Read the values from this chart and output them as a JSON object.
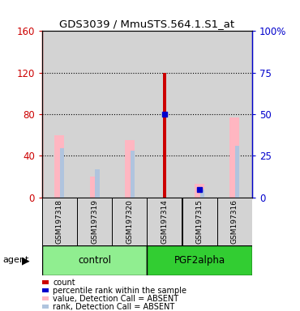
{
  "title": "GDS3039 / MmuSTS.564.1.S1_at",
  "samples": [
    "GSM197318",
    "GSM197319",
    "GSM197320",
    "GSM197314",
    "GSM197315",
    "GSM197316"
  ],
  "ylim_left": [
    0,
    160
  ],
  "ylim_right": [
    0,
    100
  ],
  "yticks_left": [
    0,
    40,
    80,
    120,
    160
  ],
  "ytick_labels_left": [
    "0",
    "40",
    "80",
    "120",
    "160"
  ],
  "yticks_right": [
    0,
    25,
    50,
    75,
    100
  ],
  "ytick_labels_right": [
    "0",
    "25",
    "50",
    "75",
    "100%"
  ],
  "values_absent": [
    60,
    20,
    55,
    0,
    13,
    77
  ],
  "ranks_absent": [
    47,
    27,
    45,
    0,
    8,
    50
  ],
  "counts": [
    0,
    0,
    0,
    120,
    0,
    0
  ],
  "pct_ranks": [
    0,
    0,
    0,
    80,
    8,
    0
  ],
  "color_count": "#CC0000",
  "color_pct_rank": "#0000CC",
  "color_value_absent": "#FFB6C1",
  "color_rank_absent": "#B0C4DE",
  "left_axis_color": "#CC0000",
  "right_axis_color": "#0000CC",
  "bg_sample_area": "#D3D3D3",
  "legend_items": [
    {
      "label": "count",
      "color": "#CC0000"
    },
    {
      "label": "percentile rank within the sample",
      "color": "#0000CC"
    },
    {
      "label": "value, Detection Call = ABSENT",
      "color": "#FFB6C1"
    },
    {
      "label": "rank, Detection Call = ABSENT",
      "color": "#B0C4DE"
    }
  ]
}
